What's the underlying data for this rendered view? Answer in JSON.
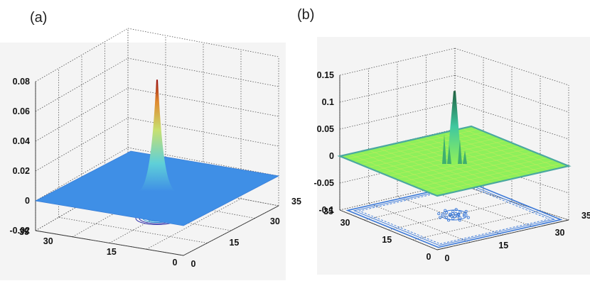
{
  "panels": [
    {
      "id": "a",
      "letter": "(a)",
      "chart_data": {
        "type": "surface3d",
        "description_series": "single sharp peak at grid center with contour projection on floor",
        "x_ticks": [
          "0",
          "15",
          "30"
        ],
        "y_ticks": [
          "0",
          "15",
          "30",
          "35"
        ],
        "z_ticks": [
          "-0.02",
          "0",
          "0.02",
          "0.04",
          "0.06",
          "0.08"
        ],
        "x_range": [
          0,
          35
        ],
        "y_range": [
          0,
          35
        ],
        "z_range": [
          -0.02,
          0.08
        ],
        "grid": true,
        "peak": {
          "x": 17.5,
          "y": 17.5,
          "z": 0.073
        },
        "base_z": 0,
        "surface_color": "#3f8fe6",
        "contour_color": "#2c2ca8"
      }
    },
    {
      "id": "b",
      "letter": "(b)",
      "chart_data": {
        "type": "surface3d",
        "x_ticks": [
          "0",
          "15",
          "30"
        ],
        "y_ticks": [
          "0",
          "15",
          "30",
          "35"
        ],
        "z_ticks": [
          "-0.1",
          "-0.05",
          "0",
          "0.05",
          "0.1",
          "0.15"
        ],
        "x_range": [
          0,
          35
        ],
        "y_range": [
          0,
          35
        ],
        "z_range": [
          -0.1,
          0.15
        ],
        "grid": true,
        "peak": {
          "x": 17.5,
          "y": 17.5,
          "z": 0.13
        },
        "base_z": 0,
        "surface_color": "#8ef05a",
        "contour_color": "#3a78d8"
      }
    }
  ]
}
